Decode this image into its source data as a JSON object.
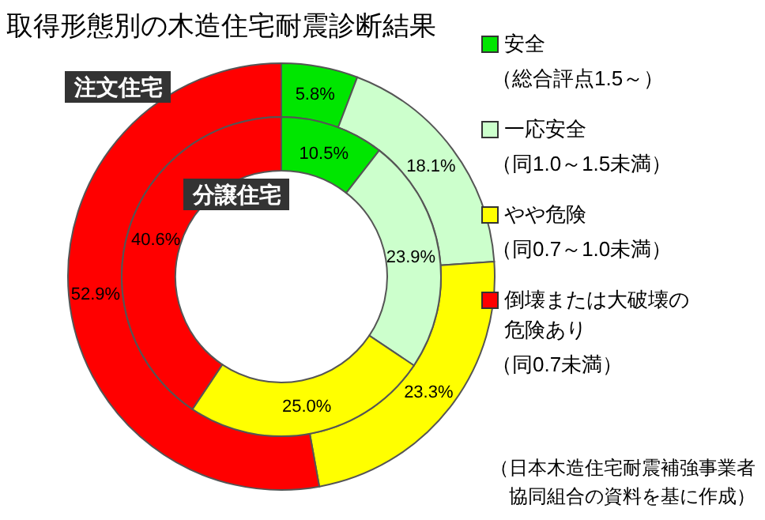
{
  "chart_data": {
    "type": "donut",
    "title": "取得形態別の木造住宅耐震診断結果",
    "categories": [
      "安全（総合評点1.5～）",
      "一応安全（同1.0～1.5未満）",
      "やや危険（同0.7～1.0未満）",
      "倒壊または大破壊の危険あり（同0.7未満）"
    ],
    "colors": [
      "#00e600",
      "#ccffcc",
      "#ffff00",
      "#ff0000"
    ],
    "series": [
      {
        "name": "注文住宅",
        "values": [
          5.8,
          18.1,
          23.3,
          52.9
        ],
        "value_labels": [
          "5.8%",
          "18.1%",
          "23.3%",
          "52.9%"
        ]
      },
      {
        "name": "分譲住宅",
        "values": [
          10.5,
          23.9,
          25.0,
          40.6
        ],
        "value_labels": [
          "10.5%",
          "23.9%",
          "25.0%",
          "40.6%"
        ]
      }
    ],
    "legend": "right",
    "annotations": [
      "（日本木造住宅耐震補強事業者協同組合の資料を基に作成）"
    ]
  }
}
